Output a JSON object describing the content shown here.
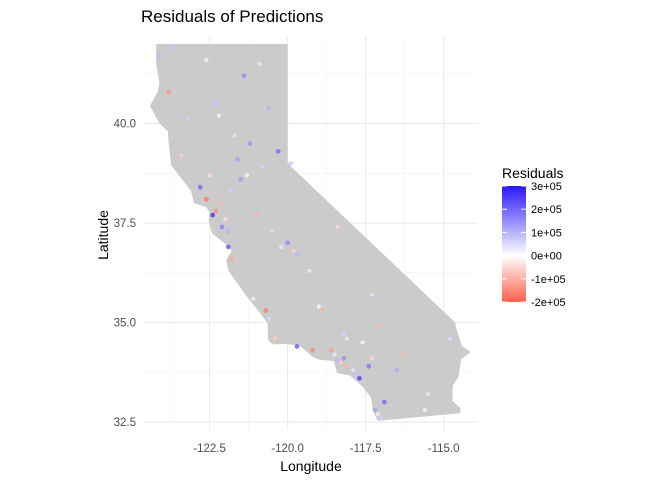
{
  "chart_data": {
    "type": "scatter",
    "title": "Residuals of Predictions",
    "xlabel": "Longitude",
    "ylabel": "Latitude",
    "x_ticks": [
      -122.5,
      -120.0,
      -117.5,
      -115.0
    ],
    "x_tick_labels": [
      "-122.5",
      "-120.0",
      "-117.5",
      "-115.0"
    ],
    "y_ticks": [
      32.5,
      35.0,
      37.5,
      40.0
    ],
    "y_tick_labels": [
      "32.5",
      "35.0",
      "37.5",
      "40.0"
    ],
    "xlim": [
      -124.6,
      -113.9
    ],
    "ylim": [
      32.3,
      42.2
    ],
    "grid": true,
    "background_shape": "California state outline (grey)",
    "legend": {
      "title": "Residuals",
      "position": "right",
      "range": [
        -200000,
        300000
      ],
      "breaks": [
        300000,
        200000,
        100000,
        0,
        -100000,
        -200000
      ],
      "break_labels": [
        "3e+05",
        "2e+05",
        "1e+05",
        "0e+00",
        "-1e+05",
        "-2e+05"
      ]
    },
    "colors": {
      "high": "#2b18ff",
      "mid": "#ffffff",
      "low": "#ff5f4a",
      "land": "#cbcbcb",
      "grid": "#ebebeb"
    },
    "california_outline": [
      [
        -124.21,
        42.0
      ],
      [
        -120.0,
        42.0
      ],
      [
        -120.0,
        39.0
      ],
      [
        -114.63,
        35.0
      ],
      [
        -114.6,
        34.87
      ],
      [
        -114.42,
        34.41
      ],
      [
        -114.13,
        34.26
      ],
      [
        -114.44,
        34.08
      ],
      [
        -114.52,
        33.64
      ],
      [
        -114.71,
        33.41
      ],
      [
        -114.72,
        33.03
      ],
      [
        -114.46,
        32.85
      ],
      [
        -114.47,
        32.72
      ],
      [
        -117.12,
        32.53
      ],
      [
        -117.27,
        32.8
      ],
      [
        -117.33,
        33.12
      ],
      [
        -117.6,
        33.39
      ],
      [
        -118.0,
        33.67
      ],
      [
        -118.29,
        33.71
      ],
      [
        -118.41,
        33.74
      ],
      [
        -118.52,
        34.03
      ],
      [
        -119.0,
        34.07
      ],
      [
        -119.22,
        34.15
      ],
      [
        -119.61,
        34.42
      ],
      [
        -120.06,
        34.46
      ],
      [
        -120.47,
        34.45
      ],
      [
        -120.62,
        34.55
      ],
      [
        -120.64,
        34.98
      ],
      [
        -120.89,
        35.25
      ],
      [
        -121.3,
        35.65
      ],
      [
        -121.9,
        36.3
      ],
      [
        -121.97,
        36.57
      ],
      [
        -121.79,
        36.8
      ],
      [
        -121.97,
        36.96
      ],
      [
        -122.42,
        37.24
      ],
      [
        -122.52,
        37.54
      ],
      [
        -122.5,
        37.78
      ],
      [
        -122.61,
        37.9
      ],
      [
        -123.0,
        38.0
      ],
      [
        -123.09,
        38.3
      ],
      [
        -123.73,
        38.95
      ],
      [
        -123.81,
        39.5
      ],
      [
        -123.83,
        39.8
      ],
      [
        -124.1,
        40.0
      ],
      [
        -124.41,
        40.44
      ],
      [
        -124.16,
        40.8
      ],
      [
        -124.11,
        41.03
      ],
      [
        -124.21,
        41.5
      ],
      [
        -124.21,
        42.0
      ]
    ],
    "points": [
      [
        -117.9,
        33.8,
        40000
      ],
      [
        -118.3,
        34.0,
        -60000
      ],
      [
        -118.2,
        34.1,
        150000
      ],
      [
        -118.4,
        34.05,
        90000
      ],
      [
        -117.7,
        33.6,
        250000
      ],
      [
        -117.2,
        32.8,
        120000
      ],
      [
        -117.1,
        32.7,
        -30000
      ],
      [
        -117.0,
        32.6,
        60000
      ],
      [
        -118.1,
        33.9,
        -90000
      ],
      [
        -118.5,
        34.2,
        30000
      ],
      [
        -117.4,
        33.9,
        180000
      ],
      [
        -117.3,
        34.1,
        -50000
      ],
      [
        -116.9,
        33.0,
        200000
      ],
      [
        -117.8,
        33.7,
        80000
      ],
      [
        -118.6,
        34.3,
        -120000
      ],
      [
        -119.2,
        34.3,
        -150000
      ],
      [
        -119.7,
        34.4,
        210000
      ],
      [
        -120.4,
        34.6,
        -70000
      ],
      [
        -120.7,
        35.3,
        -160000
      ],
      [
        -120.6,
        35.1,
        50000
      ],
      [
        -121.1,
        35.6,
        20000
      ],
      [
        -121.8,
        36.6,
        -110000
      ],
      [
        -121.9,
        37.3,
        100000
      ],
      [
        -122.1,
        37.4,
        170000
      ],
      [
        -122.3,
        37.8,
        -140000
      ],
      [
        -122.4,
        37.7,
        260000
      ],
      [
        -122.0,
        37.6,
        -40000
      ],
      [
        -122.2,
        38.0,
        -80000
      ],
      [
        -121.5,
        38.6,
        130000
      ],
      [
        -121.3,
        38.7,
        -20000
      ],
      [
        -121.8,
        38.3,
        60000
      ],
      [
        -121.0,
        37.7,
        -100000
      ],
      [
        -120.5,
        37.3,
        40000
      ],
      [
        -119.8,
        36.8,
        -60000
      ],
      [
        -119.7,
        36.7,
        90000
      ],
      [
        -119.3,
        36.3,
        -30000
      ],
      [
        -119.0,
        35.4,
        10000
      ],
      [
        -118.9,
        35.3,
        -90000
      ],
      [
        -120.2,
        36.9,
        30000
      ],
      [
        -120.0,
        37.0,
        160000
      ],
      [
        -121.6,
        39.1,
        120000
      ],
      [
        -121.7,
        39.7,
        -40000
      ],
      [
        -122.3,
        40.5,
        80000
      ],
      [
        -122.2,
        40.2,
        20000
      ],
      [
        -123.8,
        40.8,
        -130000
      ],
      [
        -124.1,
        41.7,
        90000
      ],
      [
        -123.4,
        39.2,
        -60000
      ],
      [
        -122.8,
        38.4,
        200000
      ],
      [
        -122.6,
        38.1,
        -170000
      ],
      [
        -121.2,
        39.5,
        140000
      ],
      [
        -120.8,
        38.9,
        60000
      ],
      [
        -120.3,
        39.3,
        190000
      ],
      [
        -119.9,
        39.0,
        70000
      ],
      [
        -118.4,
        37.4,
        -50000
      ],
      [
        -117.3,
        35.7,
        40000
      ],
      [
        -116.5,
        33.8,
        110000
      ],
      [
        -115.6,
        32.8,
        -20000
      ],
      [
        -115.5,
        33.2,
        30000
      ],
      [
        -114.8,
        34.6,
        50000
      ],
      [
        -117.1,
        34.9,
        -80000
      ],
      [
        -118.2,
        34.7,
        60000
      ],
      [
        -118.1,
        34.6,
        -30000
      ],
      [
        -117.6,
        34.5,
        20000
      ],
      [
        -116.3,
        34.2,
        -90000
      ],
      [
        -121.9,
        36.9,
        220000
      ],
      [
        -122.5,
        38.7,
        -40000
      ],
      [
        -123.2,
        40.1,
        60000
      ],
      [
        -120.6,
        40.4,
        100000
      ],
      [
        -120.9,
        41.5,
        30000
      ],
      [
        -122.6,
        41.6,
        -20000
      ],
      [
        -123.7,
        41.9,
        80000
      ],
      [
        -121.4,
        41.2,
        150000
      ]
    ]
  }
}
